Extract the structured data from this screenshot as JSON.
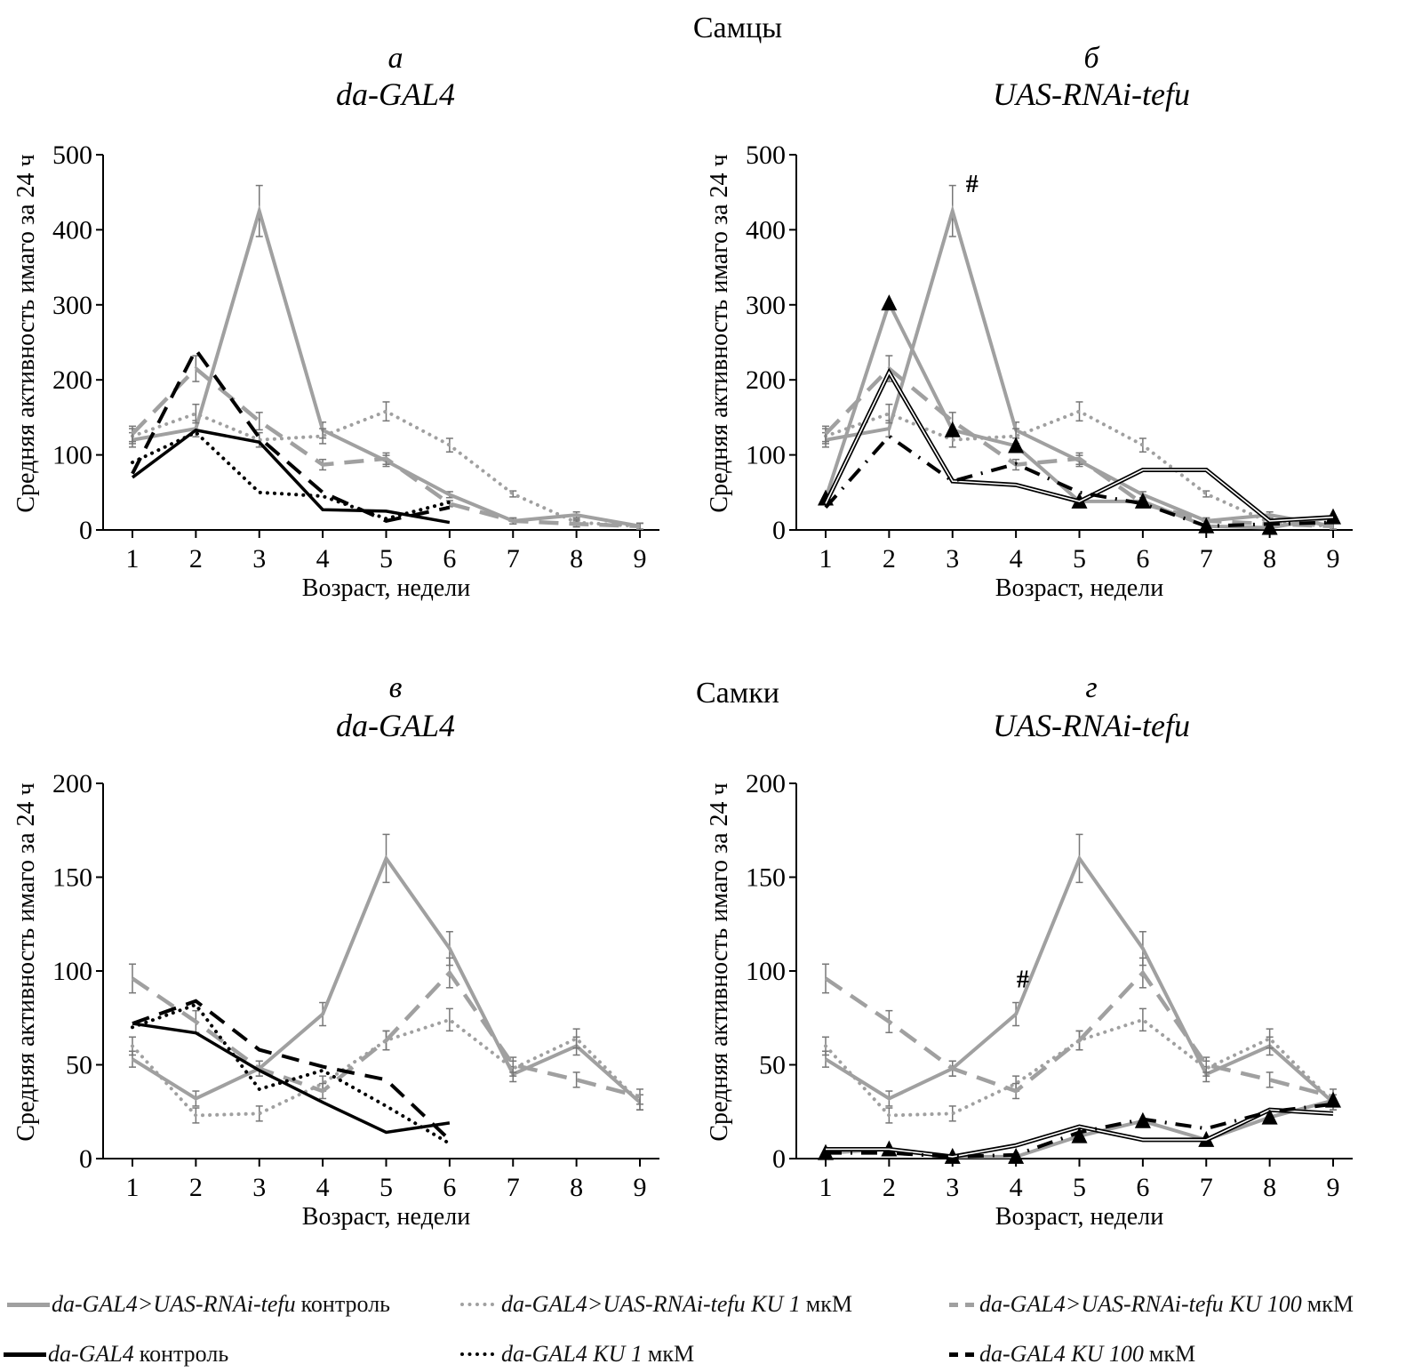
{
  "figure": {
    "top_section_title": "Самцы",
    "bottom_section_title": "Самки"
  },
  "legend": [
    {
      "key": "rnai_control",
      "italic": "da-GAL4>UAS-RNAi-tefu",
      "plain": "контроль",
      "color": "#a0a0a0",
      "style": "solid"
    },
    {
      "key": "rnai_ku1",
      "italic": "da-GAL4>UAS-RNAi-tefu KU 1",
      "plain": "мкМ",
      "color": "#a0a0a0",
      "style": "dotted"
    },
    {
      "key": "rnai_ku100",
      "italic": "da-GAL4>UAS-RNAi-tefu KU 100",
      "plain": "мкМ",
      "color": "#a0a0a0",
      "style": "dashed"
    },
    {
      "key": "gal4_control",
      "italic": "da-GAL4",
      "plain": "контроль",
      "color": "#000000",
      "style": "solid"
    },
    {
      "key": "gal4_ku1",
      "italic": "da-GAL4 KU 1",
      "plain": "мкМ",
      "color": "#000000",
      "style": "dotted"
    },
    {
      "key": "gal4_ku100",
      "italic": "da-GAL4 KU 100",
      "plain": "мкМ",
      "color": "#000000",
      "style": "dashed"
    }
  ],
  "chart_data": [
    {
      "type": "line",
      "panel": "a",
      "title": "da-GAL4",
      "section": "Самцы",
      "xlabel": "Возраст, недели",
      "ylabel": "Средняя активность имаго за 24 ч",
      "x": [
        1,
        2,
        3,
        4,
        5,
        6,
        7,
        8,
        9
      ],
      "xticks": [
        "1",
        "2",
        "3",
        "4",
        "5",
        "6",
        "7",
        "8",
        "9"
      ],
      "ylim": [
        0,
        500
      ],
      "yticks": [
        "0",
        "100",
        "200",
        "300",
        "400",
        "500"
      ],
      "grid": false,
      "annotations": [],
      "series": [
        {
          "name": "da-GAL4>UAS-RNAi-tefu контроль",
          "style": "gray-solid",
          "values": [
            120,
            135,
            425,
            133,
            92,
            47,
            12,
            20,
            5
          ]
        },
        {
          "name": "da-GAL4>UAS-RNAi-tefu KU 1 мкМ",
          "style": "gray-dotted",
          "values": [
            125,
            155,
            120,
            125,
            158,
            113,
            48,
            10,
            5
          ]
        },
        {
          "name": "da-GAL4>UAS-RNAi-tefu KU 100 мкМ",
          "style": "gray-dashed",
          "values": [
            128,
            215,
            145,
            87,
            95,
            35,
            12,
            8,
            5
          ]
        },
        {
          "name": "da-GAL4 контроль",
          "style": "black-solid",
          "values": [
            70,
            133,
            117,
            27,
            25,
            10
          ]
        },
        {
          "name": "da-GAL4 KU 1 мкМ",
          "style": "black-dotted",
          "values": [
            90,
            130,
            50,
            45,
            15,
            37
          ]
        },
        {
          "name": "da-GAL4 KU 100 мкМ",
          "style": "black-dashed",
          "values": [
            75,
            240,
            123,
            50,
            12,
            30
          ]
        }
      ]
    },
    {
      "type": "line",
      "panel": "б",
      "title": "UAS-RNAi-tefu",
      "section": "Самцы",
      "xlabel": "Возраст, недели",
      "ylabel": "Средняя активность имаго за 24 ч",
      "x": [
        1,
        2,
        3,
        4,
        5,
        6,
        7,
        8,
        9
      ],
      "xticks": [
        "1",
        "2",
        "3",
        "4",
        "5",
        "6",
        "7",
        "8",
        "9"
      ],
      "ylim": [
        0,
        500
      ],
      "yticks": [
        "0",
        "100",
        "200",
        "300",
        "400",
        "500"
      ],
      "grid": false,
      "annotations": [
        {
          "text": "#",
          "x": 3,
          "y": 460
        }
      ],
      "series": [
        {
          "name": "da-GAL4>UAS-RNAi-tefu контроль",
          "style": "gray-solid",
          "values": [
            120,
            135,
            425,
            133,
            92,
            47,
            12,
            20,
            5
          ]
        },
        {
          "name": "da-GAL4>UAS-RNAi-tefu KU 1 мкМ",
          "style": "gray-dotted",
          "values": [
            125,
            155,
            120,
            125,
            158,
            113,
            48,
            10,
            5
          ]
        },
        {
          "name": "da-GAL4>UAS-RNAi-tefu KU 100 мкМ",
          "style": "gray-dashed",
          "values": [
            128,
            215,
            145,
            87,
            95,
            35,
            12,
            8,
            5
          ]
        },
        {
          "name": "UAS-RNAi-tefu контроль",
          "style": "gray-solid-triangle",
          "values": [
            42,
            302,
            133,
            112,
            38,
            38,
            5,
            3,
            17
          ]
        },
        {
          "name": "UAS-RNAi-tefu KU 1 мкМ",
          "style": "black-double",
          "values": [
            35,
            210,
            65,
            60,
            38,
            80,
            80,
            12,
            17
          ]
        },
        {
          "name": "UAS-RNAi-tefu KU 100 мкМ",
          "style": "black-dashdot",
          "values": [
            30,
            125,
            65,
            88,
            50,
            35,
            5,
            8,
            10
          ]
        }
      ]
    },
    {
      "type": "line",
      "panel": "в",
      "title": "da-GAL4",
      "section": "Самки",
      "xlabel": "Возраст, недели",
      "ylabel": "Средняя активность имаго за 24 ч",
      "x": [
        1,
        2,
        3,
        4,
        5,
        6,
        7,
        8,
        9
      ],
      "xticks": [
        "1",
        "2",
        "3",
        "4",
        "5",
        "6",
        "7",
        "8",
        "9"
      ],
      "ylim": [
        0,
        200
      ],
      "yticks": [
        "0",
        "50",
        "100",
        "150",
        "200"
      ],
      "grid": false,
      "annotations": [],
      "series": [
        {
          "name": "da-GAL4>UAS-RNAi-tefu контроль",
          "style": "gray-solid",
          "values": [
            53,
            32,
            48,
            77,
            160,
            112,
            45,
            60,
            30
          ]
        },
        {
          "name": "da-GAL4>UAS-RNAi-tefu KU 1 мкМ",
          "style": "gray-dotted",
          "values": [
            60,
            23,
            24,
            40,
            63,
            74,
            48,
            64,
            30
          ]
        },
        {
          "name": "da-GAL4>UAS-RNAi-tefu KU 100 мкМ",
          "style": "gray-dashed",
          "values": [
            96,
            73,
            48,
            36,
            63,
            99,
            50,
            42,
            33
          ]
        },
        {
          "name": "da-GAL4 контроль",
          "style": "black-solid",
          "values": [
            72,
            67,
            47,
            30,
            14,
            19
          ]
        },
        {
          "name": "da-GAL4 KU 1 мкМ",
          "style": "black-dotted",
          "values": [
            70,
            82,
            37,
            47,
            28,
            8
          ]
        },
        {
          "name": "da-GAL4 KU 100 мкМ",
          "style": "black-dashed",
          "values": [
            72,
            84,
            58,
            49,
            42,
            10
          ]
        }
      ]
    },
    {
      "type": "line",
      "panel": "г",
      "title": "UAS-RNAi-tefu",
      "section": "Самки",
      "xlabel": "Возраст, недели",
      "ylabel": "Средняя активность имаго за 24 ч",
      "x": [
        1,
        2,
        3,
        4,
        5,
        6,
        7,
        8,
        9
      ],
      "xticks": [
        "1",
        "2",
        "3",
        "4",
        "5",
        "6",
        "7",
        "8",
        "9"
      ],
      "ylim": [
        0,
        200
      ],
      "yticks": [
        "0",
        "50",
        "100",
        "150",
        "200"
      ],
      "grid": false,
      "annotations": [
        {
          "text": "#",
          "x": 3.8,
          "y": 95
        }
      ],
      "series": [
        {
          "name": "da-GAL4>UAS-RNAi-tefu контроль",
          "style": "gray-solid",
          "values": [
            53,
            32,
            48,
            77,
            160,
            112,
            45,
            60,
            30
          ]
        },
        {
          "name": "da-GAL4>UAS-RNAi-tefu KU 1 мкМ",
          "style": "gray-dotted",
          "values": [
            60,
            23,
            24,
            40,
            63,
            74,
            48,
            64,
            30
          ]
        },
        {
          "name": "da-GAL4>UAS-RNAi-tefu KU 100 мкМ",
          "style": "gray-dashed",
          "values": [
            96,
            73,
            48,
            36,
            63,
            99,
            50,
            42,
            33
          ]
        },
        {
          "name": "UAS-RNAi-tefu контроль",
          "style": "gray-solid-triangle",
          "values": [
            3,
            5,
            1,
            1,
            12,
            20,
            10,
            22,
            31
          ]
        },
        {
          "name": "UAS-RNAi-tefu KU 1 мкМ",
          "style": "black-double",
          "values": [
            5,
            5,
            1,
            7,
            17,
            10,
            10,
            26,
            24
          ]
        },
        {
          "name": "UAS-RNAi-tefu KU 100 мкМ",
          "style": "black-dashdot",
          "values": [
            3,
            3,
            1,
            2,
            14,
            21,
            16,
            25,
            29
          ]
        }
      ]
    }
  ]
}
